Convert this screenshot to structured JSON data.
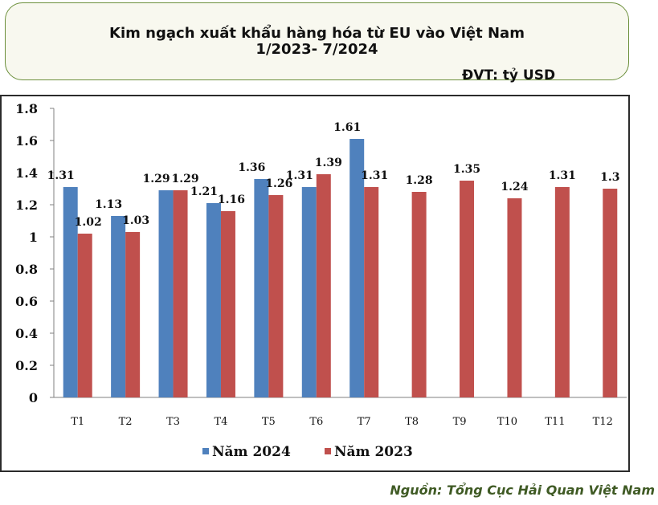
{
  "header": {
    "title_line1": "Kim ngạch xuất khẩu hàng hóa  từ EU vào Việt Nam",
    "title_line2": "1/2023- 7/2024",
    "unit": "ĐVT: tỷ USD"
  },
  "source": "Nguồn: Tổng Cục Hải Quan Việt Nam",
  "colors": {
    "series_2024": "#4f81bd",
    "series_2023": "#c0504d"
  },
  "chart_data": {
    "type": "bar",
    "categories": [
      "T1",
      "T2",
      "T3",
      "T4",
      "T5",
      "T6",
      "T7",
      "T8",
      "T9",
      "T10",
      "T11",
      "T12"
    ],
    "series": [
      {
        "name": "Năm 2024",
        "values": [
          1.31,
          1.13,
          1.29,
          1.21,
          1.36,
          1.31,
          1.61,
          null,
          null,
          null,
          null,
          null
        ]
      },
      {
        "name": "Năm 2023",
        "values": [
          1.02,
          1.03,
          1.29,
          1.16,
          1.26,
          1.39,
          1.31,
          1.28,
          1.35,
          1.24,
          1.31,
          1.3
        ]
      }
    ],
    "y_ticks": [
      "0",
      "0.2",
      "0.4",
      "0.6",
      "0.8",
      "1",
      "1.2",
      "1.4",
      "1.6",
      "1.8"
    ],
    "ylim": [
      0,
      1.8
    ],
    "grid": false,
    "legend_position": "bottom"
  }
}
